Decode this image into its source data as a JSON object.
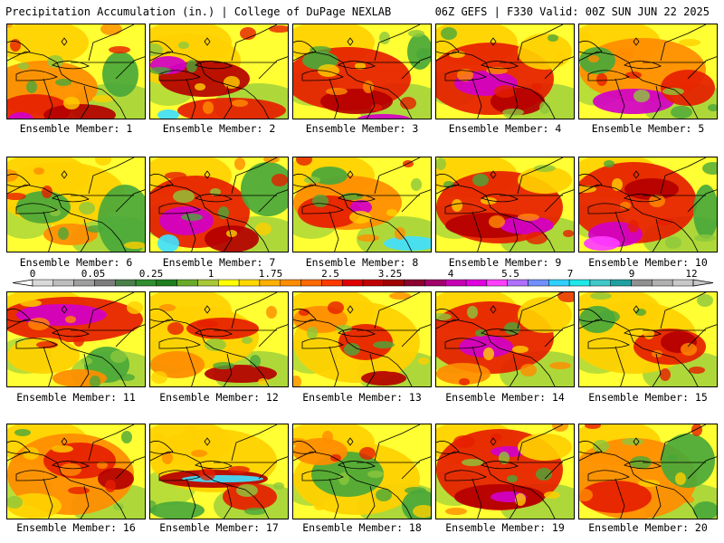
{
  "header": {
    "left": "Precipitation Accumulation (in.) | College of DuPage NEXLAB",
    "right": "06Z GEFS | F330 Valid: 00Z SUN JUN 22 2025"
  },
  "colorbar": {
    "tick_labels": [
      "0",
      "0.05",
      "0.25",
      "1",
      "1.75",
      "2.5",
      "3.25",
      "4",
      "5.5",
      "7",
      "9",
      "12"
    ],
    "colors": [
      "#d9d9d9",
      "#bdbdbd",
      "#9e9e9e",
      "#7d7d7d",
      "#4a7f4a",
      "#2f8f2f",
      "#1f7f1f",
      "#6aaa2a",
      "#a8c838",
      "#ffff00",
      "#ffd700",
      "#ffb000",
      "#ff8c00",
      "#ff6a00",
      "#ff3a00",
      "#e00000",
      "#c00000",
      "#a00000",
      "#8b0030",
      "#a0006a",
      "#c800b4",
      "#e000e0",
      "#ff40ff",
      "#b070ff",
      "#7090ff",
      "#30d0ff",
      "#20e8e8",
      "#40c8c8",
      "#20a0a0",
      "#909090",
      "#b0b0b0",
      "#c8c8c8"
    ]
  },
  "panels": [
    {
      "label": "Ensemble Member: 1"
    },
    {
      "label": "Ensemble Member: 2"
    },
    {
      "label": "Ensemble Member: 3"
    },
    {
      "label": "Ensemble Member: 4"
    },
    {
      "label": "Ensemble Member: 5"
    },
    {
      "label": "Ensemble Member: 6"
    },
    {
      "label": "Ensemble Member: 7"
    },
    {
      "label": "Ensemble Member: 8"
    },
    {
      "label": "Ensemble Member: 9"
    },
    {
      "label": "Ensemble Member: 10"
    },
    {
      "label": "Ensemble Member: 11"
    },
    {
      "label": "Ensemble Member: 12"
    },
    {
      "label": "Ensemble Member: 13"
    },
    {
      "label": "Ensemble Member: 14"
    },
    {
      "label": "Ensemble Member: 15"
    },
    {
      "label": "Ensemble Member: 16"
    },
    {
      "label": "Ensemble Member: 17"
    },
    {
      "label": "Ensemble Member: 18"
    },
    {
      "label": "Ensemble Member: 19"
    },
    {
      "label": "Ensemble Member: 20"
    }
  ]
}
